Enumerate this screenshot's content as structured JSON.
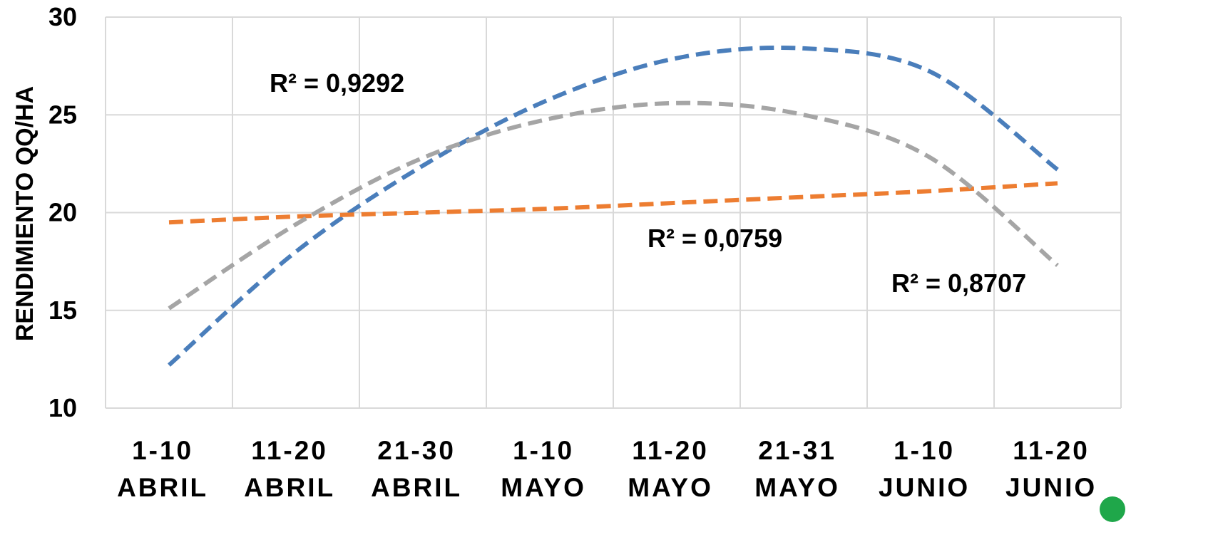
{
  "chart_data": {
    "type": "line",
    "title": "",
    "xlabel": "",
    "ylabel": "RENDIMIENTO QQ/HA",
    "ylim": [
      10,
      30
    ],
    "yticks": [
      "10",
      "15",
      "20",
      "25",
      "30"
    ],
    "grid": true,
    "legend": "none",
    "categories": [
      {
        "line1": "1-10",
        "line2": "ABRIL"
      },
      {
        "line1": "11-20",
        "line2": "ABRIL"
      },
      {
        "line1": "21-30",
        "line2": "ABRIL"
      },
      {
        "line1": "1-10",
        "line2": "MAYO"
      },
      {
        "line1": "11-20",
        "line2": "MAYO"
      },
      {
        "line1": "21-31",
        "line2": "MAYO"
      },
      {
        "line1": "1-10",
        "line2": "JUNIO"
      },
      {
        "line1": "11-20",
        "line2": "JUNIO"
      }
    ],
    "series": [
      {
        "color": "#4a7ebb",
        "style": "dashed-trendline",
        "r2_label": "R² = 0,9292",
        "values": [
          12.2,
          18.0,
          22.4,
          25.8,
          27.9,
          28.4,
          27.2,
          22.2
        ]
      },
      {
        "color": "#ed7d31",
        "style": "dashed-trendline",
        "r2_label": "R² = 0,0759",
        "values": [
          19.5,
          19.8,
          20.0,
          20.2,
          20.5,
          20.8,
          21.1,
          21.5
        ]
      },
      {
        "color": "#a5a5a5",
        "style": "dashed-trendline",
        "r2_label": "R² = 0,8707",
        "values": [
          15.1,
          19.4,
          22.8,
          24.8,
          25.6,
          25.0,
          22.8,
          17.3
        ]
      }
    ]
  }
}
